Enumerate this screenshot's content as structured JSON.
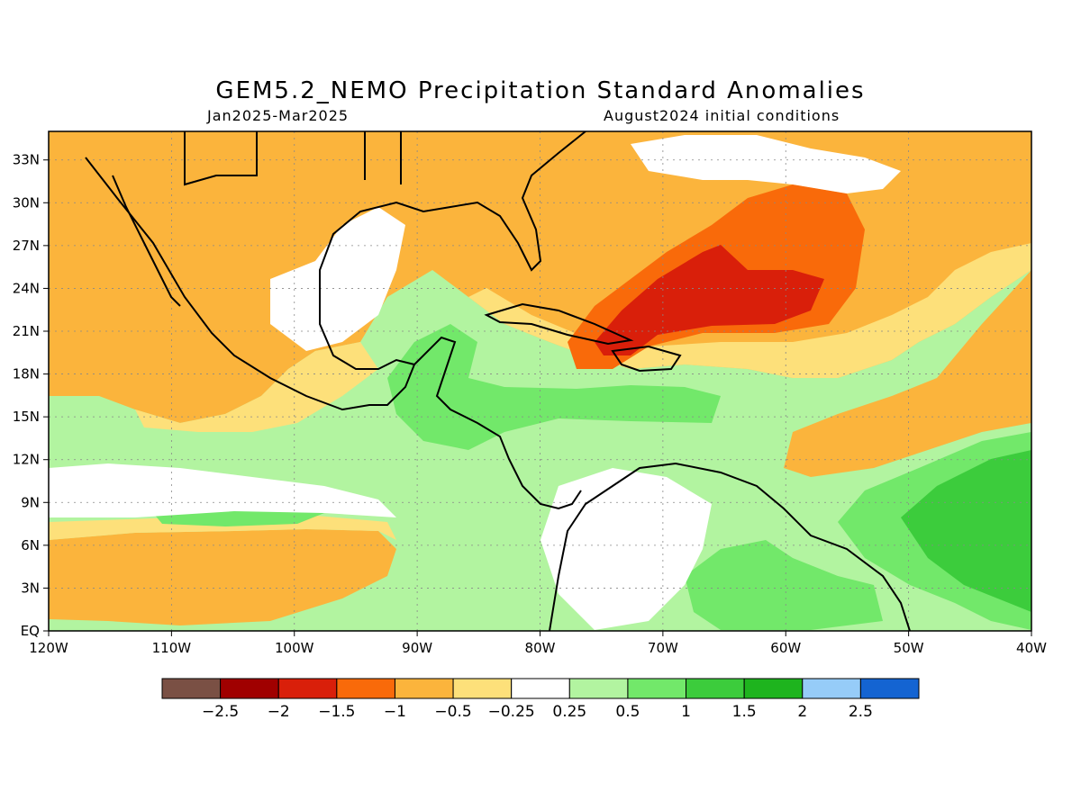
{
  "title": "GEM5.2_NEMO Precipitation Standard Anomalies",
  "period": "Jan2025-Mar2025",
  "init": "August2024 initial conditions",
  "map": {
    "lon_range": [
      -120,
      -40
    ],
    "lat_range": [
      0,
      35
    ],
    "lon_ticks": [
      {
        "value": -120,
        "label": "120W"
      },
      {
        "value": -110,
        "label": "110W"
      },
      {
        "value": -100,
        "label": "100W"
      },
      {
        "value": -90,
        "label": "90W"
      },
      {
        "value": -80,
        "label": "80W"
      },
      {
        "value": -70,
        "label": "70W"
      },
      {
        "value": -60,
        "label": "60W"
      },
      {
        "value": -50,
        "label": "50W"
      },
      {
        "value": -40,
        "label": "40W"
      }
    ],
    "lat_ticks": [
      {
        "value": 0,
        "label": "EQ"
      },
      {
        "value": 3,
        "label": "3N"
      },
      {
        "value": 6,
        "label": "6N"
      },
      {
        "value": 9,
        "label": "9N"
      },
      {
        "value": 12,
        "label": "12N"
      },
      {
        "value": 15,
        "label": "15N"
      },
      {
        "value": 18,
        "label": "18N"
      },
      {
        "value": 21,
        "label": "21N"
      },
      {
        "value": 24,
        "label": "24N"
      },
      {
        "value": 27,
        "label": "27N"
      },
      {
        "value": 30,
        "label": "30N"
      },
      {
        "value": 33,
        "label": "33N"
      }
    ],
    "grid": true
  },
  "colorbar": {
    "colors": [
      "#7a5044",
      "#a00000",
      "#d91f0a",
      "#f96a0a",
      "#fbb43c",
      "#fde07a",
      "#ffffff",
      "#b2f4a0",
      "#72e86a",
      "#3ccc3c",
      "#1eb41e",
      "#96ccf8",
      "#1464d2"
    ],
    "labels": [
      "-2.5",
      "-2",
      "-1.5",
      "-1",
      "-0.5",
      "-0.25",
      "0.25",
      "0.5",
      "1",
      "1.5",
      "2",
      "2.5"
    ]
  },
  "colors": {
    "orange": "#fbb43c",
    "yellow": "#fde07a",
    "dark_orange": "#f96a0a",
    "red": "#d91f0a",
    "light_green": "#b2f4a0",
    "green": "#72e86a",
    "mid_green": "#3ccc3c"
  }
}
